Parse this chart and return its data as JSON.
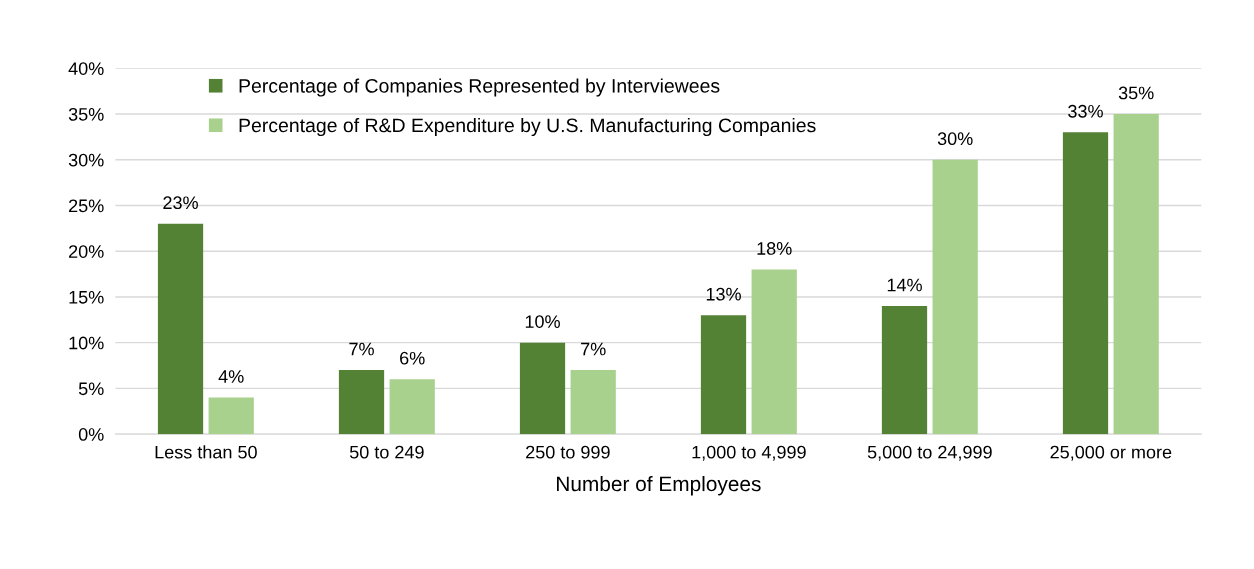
{
  "chart_data": {
    "type": "bar",
    "xlabel": "Number of Employees",
    "categories": [
      "Less than 50",
      "50 to 249",
      "250 to 999",
      "1,000 to 4,999",
      "5,000 to 24,999",
      "25,000 or more"
    ],
    "series": [
      {
        "name": "Percentage of Companies Represented by Interviewees",
        "color": "#548235",
        "values": [
          23,
          7,
          10,
          13,
          14,
          33
        ],
        "value_labels": [
          "23%",
          "7%",
          "10%",
          "13%",
          "14%",
          "33%"
        ]
      },
      {
        "name": "Percentage of R&D Expenditure by U.S. Manufacturing Companies",
        "color": "#a9d18e",
        "values": [
          4,
          6,
          7,
          18,
          30,
          35
        ],
        "value_labels": [
          "4%",
          "6%",
          "7%",
          "18%",
          "30%",
          "35%"
        ]
      }
    ],
    "ylim": [
      0,
      40
    ],
    "yticks": [
      {
        "value": 0,
        "label": "0%"
      },
      {
        "value": 5,
        "label": "5%"
      },
      {
        "value": 10,
        "label": "10%"
      },
      {
        "value": 15,
        "label": "15%"
      },
      {
        "value": 20,
        "label": "20%"
      },
      {
        "value": 25,
        "label": "25%"
      },
      {
        "value": 30,
        "label": "30%"
      },
      {
        "value": 35,
        "label": "35%"
      },
      {
        "value": 40,
        "label": "40%"
      }
    ],
    "grid": "y",
    "legend": "top left"
  }
}
